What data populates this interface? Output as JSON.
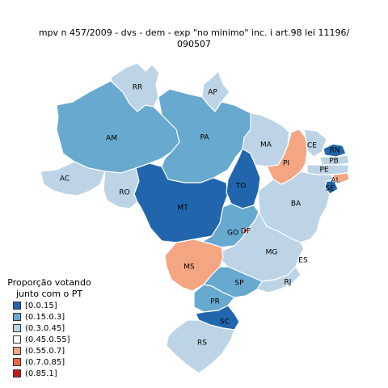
{
  "title_line1": "mpv   n   457/2009 - dvs - dem - exp \"no minimo\" inc. i art.98 lei 11196/",
  "title_line2": "090507",
  "legend": {
    "title_line1": "Proporção votando",
    "title_line2": "junto com o PT",
    "items": [
      {
        "label": "[0.0.15]",
        "color": "#2166ac"
      },
      {
        "label": "(0.15.0.3]",
        "color": "#67a9cf"
      },
      {
        "label": "(0.3.0.45]",
        "color": "#bcd4e6"
      },
      {
        "label": "(0.45.0.55]",
        "color": "#ffffff"
      },
      {
        "label": "(0.55.0.7]",
        "color": "#f4a582"
      },
      {
        "label": "(0.7.0.85]",
        "color": "#ef6548"
      },
      {
        "label": "(0.85.1]",
        "color": "#c51b1b"
      }
    ]
  },
  "states": [
    {
      "code": "RR",
      "color": "#bcd4e6"
    },
    {
      "code": "AP",
      "color": "#bcd4e6"
    },
    {
      "code": "AM",
      "color": "#67a9cf"
    },
    {
      "code": "PA",
      "color": "#67a9cf"
    },
    {
      "code": "AC",
      "color": "#bcd4e6"
    },
    {
      "code": "RO",
      "color": "#bcd4e6"
    },
    {
      "code": "MT",
      "color": "#2166ac"
    },
    {
      "code": "TO",
      "color": "#2166ac"
    },
    {
      "code": "MA",
      "color": "#bcd4e6"
    },
    {
      "code": "PI",
      "color": "#f4a582"
    },
    {
      "code": "CE",
      "color": "#bcd4e6"
    },
    {
      "code": "RN",
      "color": "#2166ac"
    },
    {
      "code": "PB",
      "color": "#bcd4e6"
    },
    {
      "code": "PE",
      "color": "#bcd4e6"
    },
    {
      "code": "AL",
      "color": "#f4a582"
    },
    {
      "code": "SE",
      "color": "#2166ac"
    },
    {
      "code": "BA",
      "color": "#bcd4e6"
    },
    {
      "code": "GO",
      "color": "#67a9cf"
    },
    {
      "code": "DF",
      "color": "#c51b1b"
    },
    {
      "code": "MG",
      "color": "#bcd4e6"
    },
    {
      "code": "ES",
      "color": "#ffffff"
    },
    {
      "code": "MS",
      "color": "#f4a582"
    },
    {
      "code": "SP",
      "color": "#67a9cf"
    },
    {
      "code": "RJ",
      "color": "#bcd4e6"
    },
    {
      "code": "PR",
      "color": "#67a9cf"
    },
    {
      "code": "SC",
      "color": "#2166ac"
    },
    {
      "code": "RS",
      "color": "#bcd4e6"
    }
  ]
}
